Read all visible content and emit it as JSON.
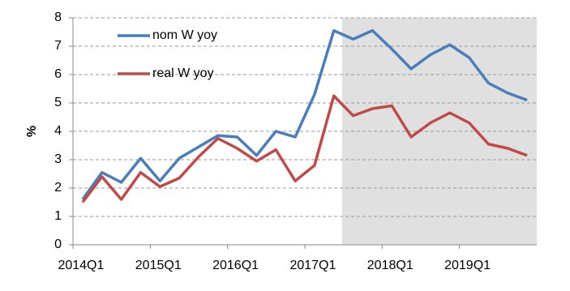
{
  "chart_data": {
    "type": "line",
    "y_label": "%",
    "categories": [
      "2014Q1",
      null,
      null,
      null,
      "2015Q1",
      null,
      null,
      null,
      "2016Q1",
      null,
      null,
      null,
      "2017Q1",
      null,
      null,
      null,
      "2018Q1",
      null,
      null,
      null,
      "2019Q1",
      null,
      null,
      null
    ],
    "series": [
      {
        "name": "nom W yoy",
        "color": "#4a7ebb",
        "values": [
          1.6,
          2.55,
          2.2,
          3.05,
          2.25,
          3.05,
          3.45,
          3.85,
          3.8,
          3.15,
          4.0,
          3.8,
          5.3,
          7.55,
          7.25,
          7.55,
          6.9,
          6.2,
          6.7,
          7.05,
          6.6,
          5.7,
          5.35,
          5.1
        ]
      },
      {
        "name": "real W yoy",
        "color": "#be4b48",
        "values": [
          1.5,
          2.4,
          1.6,
          2.55,
          2.05,
          2.35,
          3.1,
          3.75,
          3.4,
          2.95,
          3.35,
          2.25,
          2.8,
          5.25,
          4.55,
          4.8,
          4.9,
          3.8,
          4.3,
          4.65,
          4.3,
          3.55,
          3.4,
          3.15
        ]
      }
    ],
    "ylim": [
      0,
      8
    ],
    "yticks": [
      0,
      1,
      2,
      3,
      4,
      5,
      6,
      7,
      8
    ],
    "grid": true
  }
}
